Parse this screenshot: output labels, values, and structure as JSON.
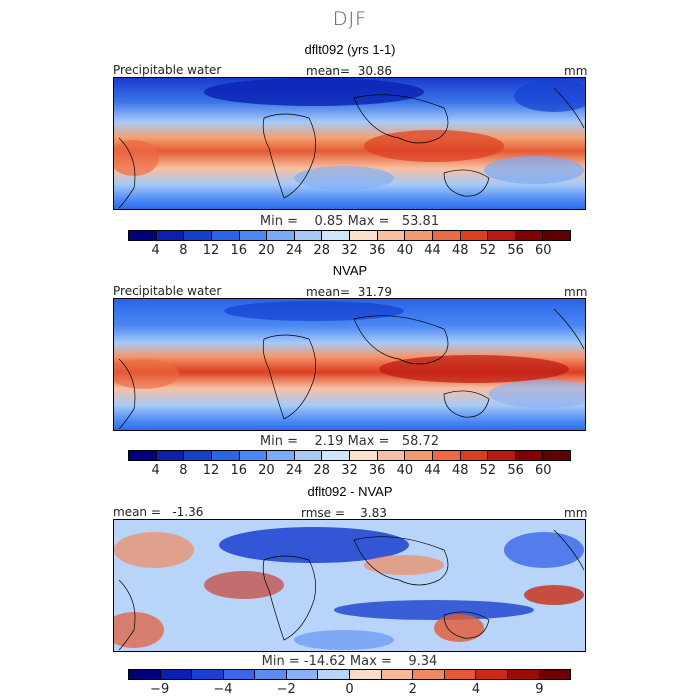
{
  "season": "DJF",
  "panels": [
    {
      "title": "dflt092 (yrs 1-1)",
      "left_label": "Precipitable water",
      "center_label": "mean=  30.86",
      "right_label": "mm",
      "minmax": "Min =    0.85 Max =   53.81",
      "colorbar_ticks": [
        "4",
        "8",
        "12",
        "16",
        "20",
        "24",
        "28",
        "32",
        "36",
        "40",
        "44",
        "48",
        "52",
        "56",
        "60"
      ],
      "colors": [
        "#00007a",
        "#0a20b0",
        "#1440d0",
        "#2a64e8",
        "#4a88f4",
        "#78acf8",
        "#a6caf8",
        "#d2e4f8",
        "#fbe2cc",
        "#f8c0a2",
        "#f4986e",
        "#ec6a44",
        "#dc3e20",
        "#bc1810",
        "#840000",
        "#600000"
      ]
    },
    {
      "title": "NVAP",
      "left_label": "Precipitable water",
      "center_label": "mean=  31.79",
      "right_label": "mm",
      "minmax": "Min =    2.19 Max =   58.72",
      "colorbar_ticks": [
        "4",
        "8",
        "12",
        "16",
        "20",
        "24",
        "28",
        "32",
        "36",
        "40",
        "44",
        "48",
        "52",
        "56",
        "60"
      ],
      "colors": [
        "#00007a",
        "#0a20b0",
        "#1440d0",
        "#2a64e8",
        "#4a88f4",
        "#78acf8",
        "#a6caf8",
        "#d2e4f8",
        "#fbe2cc",
        "#f8c0a2",
        "#f4986e",
        "#ec6a44",
        "#dc3e20",
        "#bc1810",
        "#840000",
        "#600000"
      ]
    },
    {
      "title": "dflt092 - NVAP",
      "left_label": "mean =   -1.36",
      "center_label": "rmse =    3.83",
      "right_label": "mm",
      "minmax": "Min = -14.62 Max =    9.34",
      "colorbar_ticks": [
        "-9",
        "",
        "-4",
        "",
        "-2",
        "",
        "0",
        "",
        "2",
        "",
        "4",
        "",
        "9"
      ],
      "colors": [
        "#00007a",
        "#0a20b0",
        "#1a40d0",
        "#3a66e8",
        "#5a8cf4",
        "#86b0f8",
        "#b8d4f8",
        "#f8dcc8",
        "#f8b894",
        "#f08a5e",
        "#e45a34",
        "#c82a14",
        "#9a0c04",
        "#700000"
      ]
    }
  ]
}
